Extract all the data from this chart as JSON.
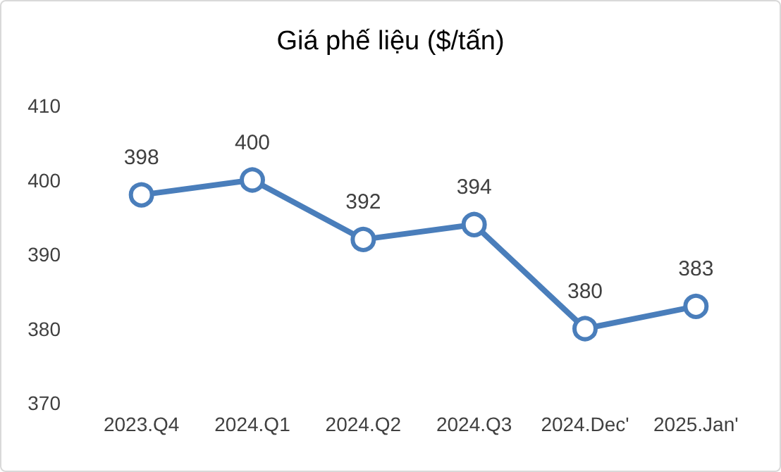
{
  "chart_data": {
    "type": "line",
    "title": "Giá phế liệu ($/tấn)",
    "categories": [
      "2023.Q4",
      "2024.Q1",
      "2024.Q2",
      "2024.Q3",
      "2024.Dec'",
      "2025.Jan'"
    ],
    "series": [
      {
        "color": "#4a7ebb",
        "values": [
          398,
          400,
          392,
          394,
          380,
          383
        ]
      }
    ],
    "ylim": [
      370,
      410
    ],
    "yticks": [
      370,
      380,
      390,
      400,
      410
    ],
    "grid": false,
    "marker": "circle",
    "line_style": "solid",
    "data_labels": true
  }
}
